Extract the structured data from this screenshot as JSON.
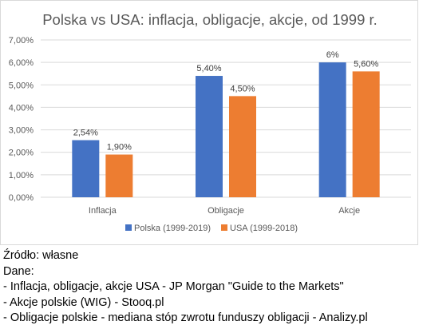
{
  "chart_data": {
    "type": "bar",
    "title": "Polska vs USA: inflacja, obligacje, akcje, od 1999 r.",
    "categories": [
      "Inflacja",
      "Obligacje",
      "Akcje"
    ],
    "series": [
      {
        "name": "Polska (1999-2019)",
        "values": [
          0.0254,
          0.054,
          0.06
        ],
        "labels": [
          "2,54%",
          "5,40%",
          "6%"
        ],
        "color": "#4472c4"
      },
      {
        "name": "USA (1999-2018)",
        "values": [
          0.019,
          0.045,
          0.056
        ],
        "labels": [
          "1,90%",
          "4,50%",
          "5,60%"
        ],
        "color": "#ed7d31"
      }
    ],
    "ylim": [
      0,
      0.07
    ],
    "yticks": [
      "0,00%",
      "1,00%",
      "2,00%",
      "3,00%",
      "4,00%",
      "5,00%",
      "6,00%",
      "7,00%"
    ],
    "grid": true,
    "legend": "bottom",
    "xlabel": "",
    "ylabel": ""
  },
  "notes": {
    "source": "Źródło: własne",
    "data_heading": "Dane:",
    "lines": [
      "- Inflacja, obligacje, akcje USA - JP Morgan \"Guide to the Markets\"",
      "- Akcje polskie (WIG) - Stooq.pl",
      "- Obligacje polskie - mediana stóp zwrotu funduszy obligacji - Analizy.pl"
    ]
  },
  "colors": {
    "grid": "#d9d9d9",
    "axis_text": "#595959",
    "title": "#595959"
  }
}
